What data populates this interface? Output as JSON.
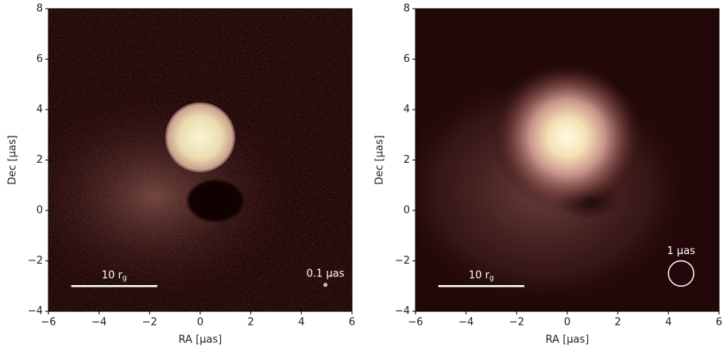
{
  "chart_data": [
    {
      "type": "image",
      "xlabel": "RA [μas]",
      "ylabel": "Dec [μas]",
      "xlim": [
        -6,
        6
      ],
      "ylim": [
        -4,
        8
      ],
      "xticks": [
        {
          "value": -6,
          "label": "−6"
        },
        {
          "value": -4,
          "label": "−4"
        },
        {
          "value": -2,
          "label": "−2"
        },
        0,
        2,
        4,
        6
      ],
      "yticks": [
        {
          "value": -4,
          "label": "−4"
        },
        {
          "value": -2,
          "label": "−2"
        },
        0,
        2,
        4,
        6,
        8
      ],
      "style": "noisy",
      "scale_bar": {
        "text": "10 r",
        "subscript": "g",
        "x": [
          -5.1,
          -1.7
        ],
        "y": -3
      },
      "beam": {
        "label": "0.1 μas",
        "x": 4.95,
        "y": -2.95,
        "diameter": 0.1
      }
    },
    {
      "type": "image",
      "xlabel": "RA [μas]",
      "ylabel": "Dec [μas]",
      "xlim": [
        -6,
        6
      ],
      "ylim": [
        -4,
        8
      ],
      "xticks": [
        {
          "value": -6,
          "label": "−6"
        },
        {
          "value": -4,
          "label": "−4"
        },
        {
          "value": -2,
          "label": "−2"
        },
        0,
        2,
        4,
        6
      ],
      "yticks": [
        {
          "value": -4,
          "label": "−4"
        },
        {
          "value": -2,
          "label": "−2"
        },
        0,
        2,
        4,
        6,
        8
      ],
      "style": "smooth",
      "scale_bar": {
        "text": "10 r",
        "subscript": "g",
        "x": [
          -5.1,
          -1.7
        ],
        "y": -3
      },
      "beam": {
        "label": "1 μas",
        "x": 4.5,
        "y": -2.5,
        "diameter": 1
      }
    }
  ]
}
